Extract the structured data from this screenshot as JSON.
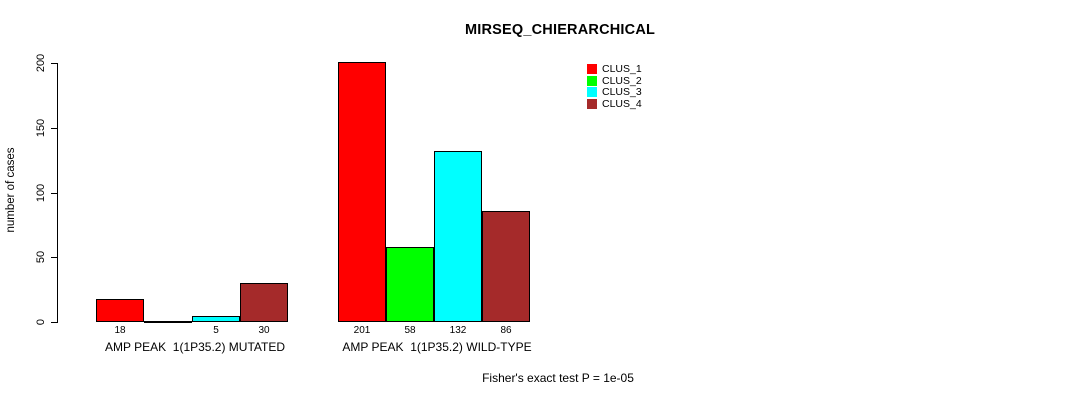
{
  "title": "MIRSEQ_CHIERARCHICAL",
  "footer": "Fisher's exact test P = 1e-05",
  "chart_data": {
    "type": "bar",
    "title": "MIRSEQ_CHIERARCHICAL",
    "xlabel": "",
    "ylabel": "number of cases",
    "ylim": [
      0,
      200
    ],
    "yticks": [
      "0",
      "50",
      "100",
      "150",
      "200"
    ],
    "grid": false,
    "legend_position": "top-right",
    "categories": [
      "AMP PEAK  1(1P35.2) MUTATED",
      "AMP PEAK  1(1P35.2) WILD-TYPE"
    ],
    "series": [
      {
        "name": "CLUS_1",
        "color": "#FF0000",
        "values": [
          18,
          201
        ]
      },
      {
        "name": "CLUS_2",
        "color": "#00FF00",
        "values": [
          0,
          58
        ]
      },
      {
        "name": "CLUS_3",
        "color": "#00FFFF",
        "values": [
          5,
          132
        ]
      },
      {
        "name": "CLUS_4",
        "color": "#A52A2A",
        "values": [
          30,
          86
        ]
      }
    ],
    "bar_labels": [
      [
        "18",
        "",
        "5",
        "30"
      ],
      [
        "201",
        "58",
        "132",
        "86"
      ]
    ],
    "annotation": "Fisher's exact test P = 1e-05"
  }
}
